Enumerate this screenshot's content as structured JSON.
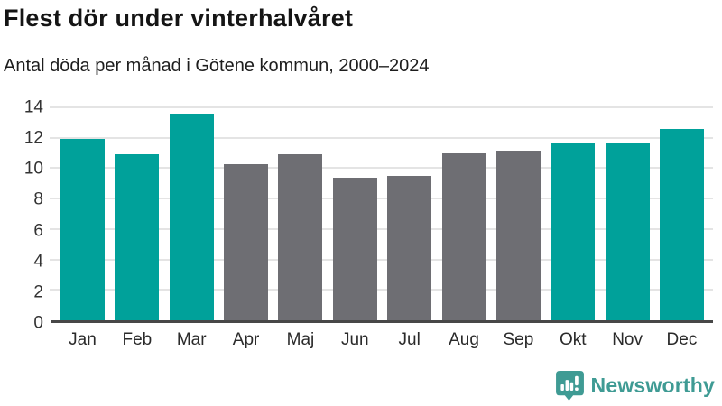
{
  "header": {
    "title": "Flest dör under vinterhalvåret",
    "subtitle": "Antal döda per månad i Götene kommun, 2000–2024"
  },
  "colors": {
    "teal": "#00a19a",
    "gray": "#6e6e73",
    "gridline": "#e4e4e4",
    "axis_line": "#474747",
    "logo_teal": "#3f9b94"
  },
  "chart_data": {
    "type": "bar",
    "title": "Flest dör under vinterhalvåret",
    "subtitle": "Antal döda per månad i Götene kommun, 2000–2024",
    "xlabel": "",
    "ylabel": "",
    "categories": [
      "Jan",
      "Feb",
      "Mar",
      "Apr",
      "Maj",
      "Jun",
      "Jul",
      "Aug",
      "Sep",
      "Okt",
      "Nov",
      "Dec"
    ],
    "values": [
      11.9,
      10.9,
      13.6,
      10.25,
      10.9,
      9.4,
      9.5,
      11.0,
      11.15,
      11.65,
      11.6,
      12.6
    ],
    "bar_color_keys": [
      "teal",
      "teal",
      "teal",
      "gray",
      "gray",
      "gray",
      "gray",
      "gray",
      "gray",
      "teal",
      "teal",
      "teal"
    ],
    "ylim": [
      0,
      14
    ],
    "yticks": [
      0,
      2,
      4,
      6,
      8,
      10,
      12,
      14
    ],
    "grid": true,
    "legend": "none"
  },
  "branding": {
    "logo_text": "Newsworthy",
    "logo_icon": "newsworthy-chart-bubble-icon"
  }
}
